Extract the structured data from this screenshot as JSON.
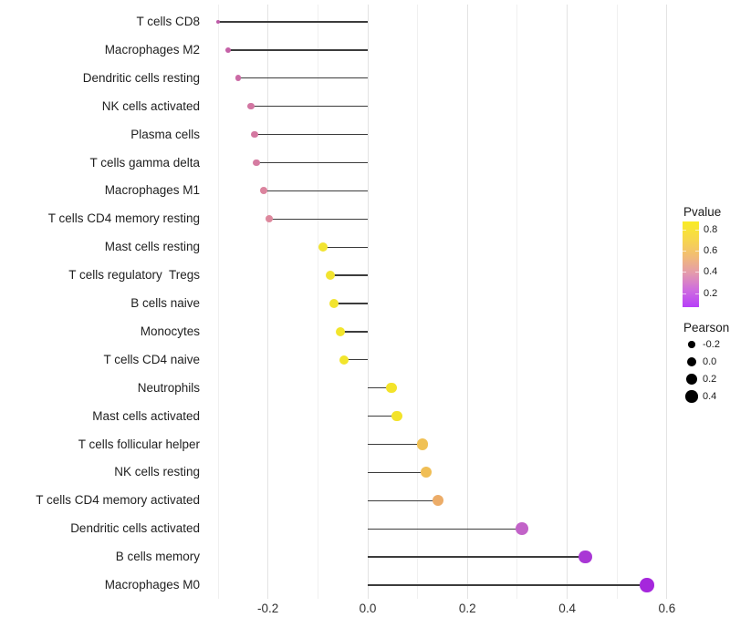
{
  "chart_data": {
    "type": "lollipop",
    "title": "",
    "xlabel": "",
    "ylabel": "",
    "x_axis": {
      "range": [
        -0.34,
        0.6
      ],
      "major_ticks": [
        {
          "value": -0.2,
          "label": "-0.2"
        },
        {
          "value": 0.0,
          "label": "0.0"
        },
        {
          "value": 0.2,
          "label": "0.2"
        },
        {
          "value": 0.4,
          "label": "0.4"
        },
        {
          "value": 0.6,
          "label": "0.6"
        }
      ],
      "minor_values": [
        -0.3,
        -0.1,
        0.1,
        0.3,
        0.5
      ]
    },
    "points": [
      {
        "label": "T cells CD8",
        "pearson": -0.3,
        "color": "#BD5BA7"
      },
      {
        "label": "Macrophages M2",
        "pearson": -0.28,
        "color": "#C561A7"
      },
      {
        "label": "Dendritic cells resting",
        "pearson": -0.26,
        "color": "#CB6AA5"
      },
      {
        "label": "NK cells activated",
        "pearson": -0.234,
        "color": "#D276A2"
      },
      {
        "label": "Plasma cells",
        "pearson": -0.227,
        "color": "#D478A1"
      },
      {
        "label": "T cells gamma delta",
        "pearson": -0.223,
        "color": "#D57BA1"
      },
      {
        "label": "Macrophages M1",
        "pearson": -0.208,
        "color": "#DB849E"
      },
      {
        "label": "T cells CD4 memory resting",
        "pearson": -0.198,
        "color": "#DD889D"
      },
      {
        "label": "Mast cells resting",
        "pearson": -0.09,
        "color": "#F2E430"
      },
      {
        "label": "T cells regulatory  Tregs",
        "pearson": -0.075,
        "color": "#F2E430"
      },
      {
        "label": "B cells naive",
        "pearson": -0.068,
        "color": "#F2E430"
      },
      {
        "label": "Monocytes",
        "pearson": -0.055,
        "color": "#F2E52C"
      },
      {
        "label": "T cells CD4 naive",
        "pearson": -0.048,
        "color": "#F2E52C"
      },
      {
        "label": "Neutrophils",
        "pearson": 0.048,
        "color": "#F3E32A"
      },
      {
        "label": "Mast cells activated",
        "pearson": 0.059,
        "color": "#F3E32A"
      },
      {
        "label": "T cells follicular helper",
        "pearson": 0.11,
        "color": "#F0C155"
      },
      {
        "label": "NK cells resting",
        "pearson": 0.117,
        "color": "#F0BE55"
      },
      {
        "label": "T cells CD4 memory activated",
        "pearson": 0.141,
        "color": "#ECAC68"
      },
      {
        "label": "Dendritic cells activated",
        "pearson": 0.309,
        "color": "#C263C8"
      },
      {
        "label": "B cells memory",
        "pearson": 0.436,
        "color": "#A937D5"
      },
      {
        "label": "Macrophages M0",
        "pearson": 0.56,
        "color": "#A527DC"
      }
    ],
    "legend_pvalue": {
      "title": "Pvalue",
      "tick_labels": [
        "0.8",
        "0.6",
        "0.4",
        "0.2"
      ],
      "gradient_top_to_bottom": [
        "#F9EC25",
        "#F7D84A",
        "#F2BD74",
        "#E49BAC",
        "#CE6CDF",
        "#B73EF8"
      ]
    },
    "legend_pearson": {
      "title": "Pearson",
      "entries": [
        {
          "value": -0.2,
          "label": "-0.2"
        },
        {
          "value": 0.0,
          "label": "0.0"
        },
        {
          "value": 0.2,
          "label": "0.2"
        },
        {
          "value": 0.4,
          "label": "0.4"
        }
      ]
    },
    "colors": {
      "stem_line": "#3C3C3C",
      "grid_major": "#E3E3E3",
      "grid_minor": "#F0F0F0",
      "background": "#FFFFFF",
      "legend_dot": "#000000"
    }
  }
}
